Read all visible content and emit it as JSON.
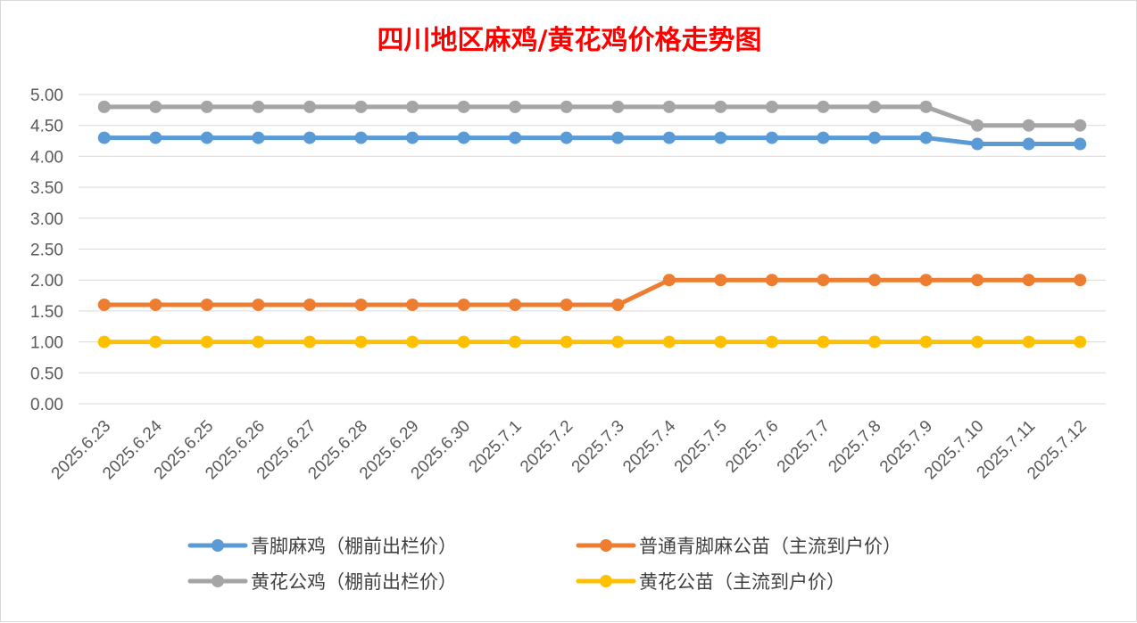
{
  "chart_data": {
    "type": "line",
    "title": "四川地区麻鸡/黄花鸡价格走势图",
    "categories": [
      "2025.6.23",
      "2025.6.24",
      "2025.6.25",
      "2025.6.26",
      "2025.6.27",
      "2025.6.28",
      "2025.6.29",
      "2025.6.30",
      "2025.7.1",
      "2025.7.2",
      "2025.7.3",
      "2025.7.4",
      "2025.7.5",
      "2025.7.6",
      "2025.7.7",
      "2025.7.8",
      "2025.7.9",
      "2025.7.10",
      "2025.7.11",
      "2025.7.12"
    ],
    "ylim": [
      0,
      5
    ],
    "yticks": [
      "0.00",
      "0.50",
      "1.00",
      "1.50",
      "2.00",
      "2.50",
      "3.00",
      "3.50",
      "4.00",
      "4.50",
      "5.00"
    ],
    "grid": true,
    "legend_position": "bottom",
    "series": [
      {
        "name": "青脚麻鸡（棚前出栏价）",
        "color": "#5b9bd5",
        "values": [
          4.3,
          4.3,
          4.3,
          4.3,
          4.3,
          4.3,
          4.3,
          4.3,
          4.3,
          4.3,
          4.3,
          4.3,
          4.3,
          4.3,
          4.3,
          4.3,
          4.3,
          4.2,
          4.2,
          4.2
        ]
      },
      {
        "name": "普通青脚麻公苗（主流到户价）",
        "color": "#ed7d31",
        "values": [
          1.6,
          1.6,
          1.6,
          1.6,
          1.6,
          1.6,
          1.6,
          1.6,
          1.6,
          1.6,
          1.6,
          2.0,
          2.0,
          2.0,
          2.0,
          2.0,
          2.0,
          2.0,
          2.0,
          2.0
        ]
      },
      {
        "name": "黄花公鸡（棚前出栏价）",
        "color": "#a5a5a5",
        "values": [
          4.8,
          4.8,
          4.8,
          4.8,
          4.8,
          4.8,
          4.8,
          4.8,
          4.8,
          4.8,
          4.8,
          4.8,
          4.8,
          4.8,
          4.8,
          4.8,
          4.8,
          4.5,
          4.5,
          4.5
        ]
      },
      {
        "name": "黄花公苗（主流到户价）",
        "color": "#ffc000",
        "values": [
          1.0,
          1.0,
          1.0,
          1.0,
          1.0,
          1.0,
          1.0,
          1.0,
          1.0,
          1.0,
          1.0,
          1.0,
          1.0,
          1.0,
          1.0,
          1.0,
          1.0,
          1.0,
          1.0,
          1.0
        ]
      }
    ]
  }
}
